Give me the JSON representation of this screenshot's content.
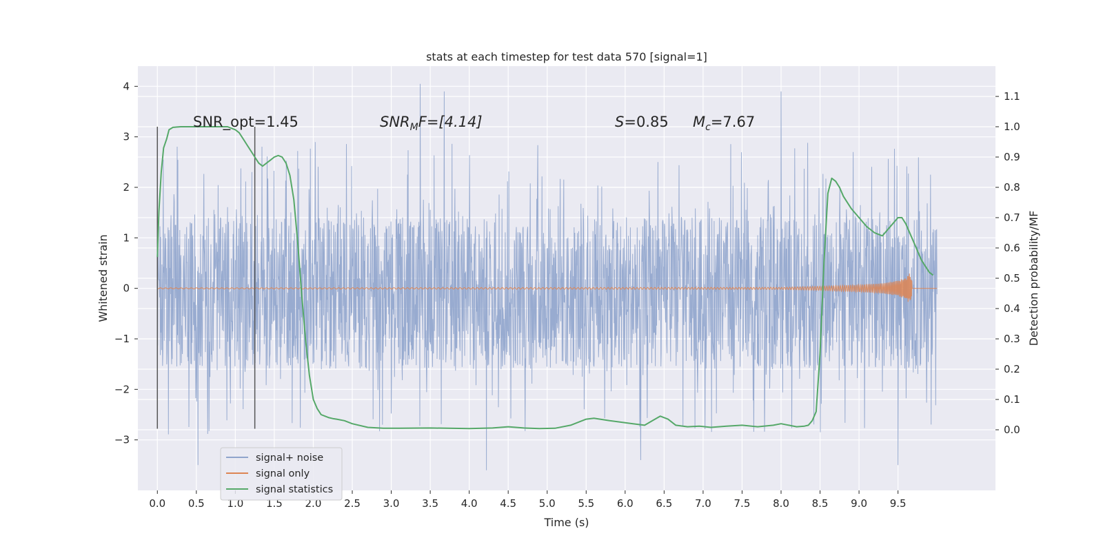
{
  "chart_data": {
    "type": "line",
    "title": "stats at each timestep for test data 570 [signal=1]",
    "xlabel": "Time (s)",
    "ylabel_left": "Whitened strain",
    "ylabel_right": "Detection probability/MF",
    "xlim": [
      -0.25,
      10.75
    ],
    "ylim_left": [
      -4,
      4.4
    ],
    "ylim_right": [
      -0.2,
      1.2
    ],
    "xticks": [
      "0.0",
      "0.5",
      "1.0",
      "1.5",
      "2.0",
      "2.5",
      "3.0",
      "3.5",
      "4.0",
      "4.5",
      "5.0",
      "5.5",
      "6.0",
      "6.5",
      "7.0",
      "7.5",
      "8.0",
      "8.5",
      "9.0",
      "9.5"
    ],
    "yticks_left": [
      "4",
      "3",
      "2",
      "1",
      "0",
      "−1",
      "−2",
      "−3"
    ],
    "yticks_right": [
      "1.1",
      "1.0",
      "0.9",
      "0.8",
      "0.7",
      "0.6",
      "0.5",
      "0.4",
      "0.3",
      "0.2",
      "0.1",
      "0.0"
    ],
    "grid": true,
    "legend_position": "lower-left",
    "colors": {
      "background": "#eaeaf2",
      "grid": "#ffffff",
      "noise": "#8fa4cc",
      "signal": "#dd8452",
      "stats": "#55a868",
      "vline": "#555555"
    },
    "annotations": {
      "snr_opt": "SNR_opt=1.45",
      "snr_mf_base": "SNR",
      "snr_mf_sub": "M",
      "snr_mf_tail": "F=[4.14]",
      "s_var": "S",
      "s_val": "=0.85",
      "mc_var": "M",
      "mc_sub": "c",
      "mc_val": "=7.67"
    },
    "window_lines_x": [
      0.0,
      1.25
    ],
    "series": [
      {
        "name": "signal+ noise",
        "axis": "left",
        "summary": {
          "x_range": [
            0.0,
            10.0
          ],
          "band_low": -1.6,
          "band_high": 1.4,
          "peak_high": 4.05,
          "peak_low": -3.6
        }
      },
      {
        "name": "signal only",
        "axis": "left",
        "x": [
          0.0,
          8.0,
          8.5,
          9.0,
          9.3,
          9.5,
          9.6,
          9.65,
          9.7,
          10.0
        ],
        "amplitude": [
          0.01,
          0.02,
          0.04,
          0.07,
          0.1,
          0.15,
          0.22,
          0.3,
          0.05,
          0.0
        ]
      },
      {
        "name": "signal statistics",
        "axis": "right",
        "x": [
          0.0,
          0.02,
          0.05,
          0.08,
          0.12,
          0.15,
          0.2,
          0.3,
          0.4,
          0.5,
          0.6,
          0.7,
          0.8,
          0.9,
          1.0,
          1.05,
          1.1,
          1.15,
          1.2,
          1.25,
          1.3,
          1.35,
          1.4,
          1.45,
          1.5,
          1.55,
          1.6,
          1.65,
          1.7,
          1.75,
          1.8,
          1.85,
          1.9,
          1.95,
          2.0,
          2.05,
          2.1,
          2.15,
          2.2,
          2.25,
          2.3,
          2.4,
          2.5,
          2.7,
          2.9,
          3.1,
          3.5,
          4.0,
          4.3,
          4.5,
          4.7,
          4.9,
          5.1,
          5.3,
          5.5,
          5.6,
          5.8,
          5.95,
          6.1,
          6.25,
          6.35,
          6.45,
          6.55,
          6.65,
          6.8,
          6.95,
          7.1,
          7.3,
          7.5,
          7.7,
          7.9,
          8.0,
          8.1,
          8.2,
          8.3,
          8.35,
          8.4,
          8.45,
          8.5,
          8.55,
          8.6,
          8.65,
          8.7,
          8.75,
          8.8,
          8.9,
          9.0,
          9.1,
          9.2,
          9.3,
          9.4,
          9.5,
          9.55,
          9.6,
          9.7,
          9.8,
          9.9,
          9.95
        ],
        "y": [
          0.57,
          0.72,
          0.85,
          0.93,
          0.96,
          0.99,
          0.998,
          1.0,
          1.0,
          1.0,
          1.0,
          1.0,
          1.0,
          1.0,
          0.99,
          0.98,
          0.96,
          0.94,
          0.92,
          0.9,
          0.88,
          0.87,
          0.88,
          0.89,
          0.9,
          0.905,
          0.9,
          0.88,
          0.84,
          0.76,
          0.62,
          0.45,
          0.3,
          0.18,
          0.1,
          0.07,
          0.05,
          0.045,
          0.04,
          0.037,
          0.035,
          0.03,
          0.02,
          0.008,
          0.005,
          0.005,
          0.006,
          0.004,
          0.006,
          0.01,
          0.006,
          0.004,
          0.005,
          0.015,
          0.035,
          0.038,
          0.03,
          0.025,
          0.02,
          0.015,
          0.03,
          0.045,
          0.035,
          0.015,
          0.01,
          0.012,
          0.008,
          0.012,
          0.015,
          0.01,
          0.015,
          0.02,
          0.015,
          0.01,
          0.012,
          0.015,
          0.03,
          0.06,
          0.25,
          0.55,
          0.78,
          0.83,
          0.82,
          0.8,
          0.77,
          0.73,
          0.7,
          0.67,
          0.65,
          0.64,
          0.67,
          0.7,
          0.7,
          0.68,
          0.62,
          0.56,
          0.52,
          0.51
        ]
      }
    ]
  }
}
